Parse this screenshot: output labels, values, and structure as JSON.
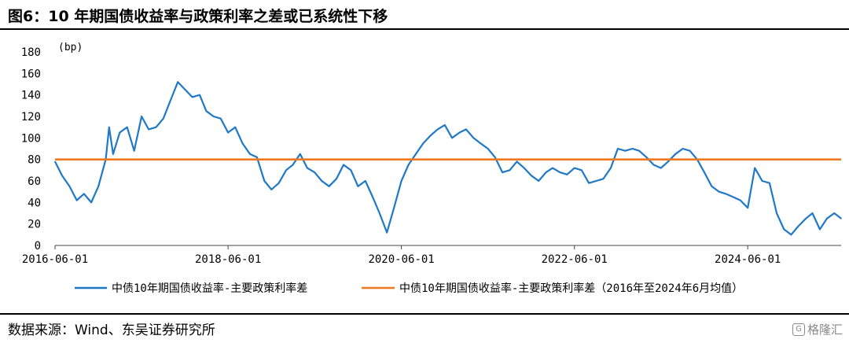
{
  "title": "图6：10 年期国债收益率与政策利率之差或已系统性下移",
  "source": "数据来源：Wind、东吴证券研究所",
  "watermark": "格隆汇",
  "chart_data": {
    "type": "line",
    "unit_label": "(bp)",
    "ylim": [
      0,
      180
    ],
    "yticks": [
      0,
      20,
      40,
      60,
      80,
      100,
      120,
      140,
      160,
      180
    ],
    "xlim": [
      "2016-06-01",
      "2025-06-30"
    ],
    "xticks": [
      "2016-06-01",
      "2018-06-01",
      "2020-06-01",
      "2022-06-01",
      "2024-06-01"
    ],
    "grid": false,
    "legend_position": "bottom",
    "colors": {
      "spread": "#1f78c8",
      "mean": "#f07820"
    },
    "series": [
      {
        "name": "中债10年期国债收益率-主要政策利率差",
        "color": "#1f78c8",
        "points": [
          [
            "2016-06-01",
            78
          ],
          [
            "2016-07-01",
            65
          ],
          [
            "2016-08-01",
            55
          ],
          [
            "2016-09-01",
            42
          ],
          [
            "2016-10-01",
            48
          ],
          [
            "2016-11-01",
            40
          ],
          [
            "2016-12-01",
            55
          ],
          [
            "2017-01-01",
            80
          ],
          [
            "2017-01-15",
            110
          ],
          [
            "2017-02-01",
            85
          ],
          [
            "2017-03-01",
            105
          ],
          [
            "2017-04-01",
            110
          ],
          [
            "2017-05-01",
            88
          ],
          [
            "2017-06-01",
            120
          ],
          [
            "2017-07-01",
            108
          ],
          [
            "2017-08-01",
            110
          ],
          [
            "2017-09-01",
            118
          ],
          [
            "2017-10-01",
            135
          ],
          [
            "2017-11-01",
            152
          ],
          [
            "2017-12-01",
            145
          ],
          [
            "2018-01-01",
            138
          ],
          [
            "2018-02-01",
            140
          ],
          [
            "2018-03-01",
            125
          ],
          [
            "2018-04-01",
            120
          ],
          [
            "2018-05-01",
            118
          ],
          [
            "2018-06-01",
            105
          ],
          [
            "2018-07-01",
            110
          ],
          [
            "2018-08-01",
            95
          ],
          [
            "2018-09-01",
            85
          ],
          [
            "2018-10-01",
            82
          ],
          [
            "2018-11-01",
            60
          ],
          [
            "2018-12-01",
            52
          ],
          [
            "2019-01-01",
            58
          ],
          [
            "2019-02-01",
            70
          ],
          [
            "2019-03-01",
            75
          ],
          [
            "2019-04-01",
            85
          ],
          [
            "2019-05-01",
            72
          ],
          [
            "2019-06-01",
            68
          ],
          [
            "2019-07-01",
            60
          ],
          [
            "2019-08-01",
            55
          ],
          [
            "2019-09-01",
            62
          ],
          [
            "2019-10-01",
            75
          ],
          [
            "2019-11-01",
            70
          ],
          [
            "2019-12-01",
            55
          ],
          [
            "2020-01-01",
            60
          ],
          [
            "2020-02-01",
            45
          ],
          [
            "2020-03-01",
            30
          ],
          [
            "2020-04-01",
            12
          ],
          [
            "2020-05-01",
            35
          ],
          [
            "2020-06-01",
            60
          ],
          [
            "2020-07-01",
            75
          ],
          [
            "2020-08-01",
            85
          ],
          [
            "2020-09-01",
            95
          ],
          [
            "2020-10-01",
            102
          ],
          [
            "2020-11-01",
            108
          ],
          [
            "2020-12-01",
            112
          ],
          [
            "2021-01-01",
            100
          ],
          [
            "2021-02-01",
            105
          ],
          [
            "2021-03-01",
            108
          ],
          [
            "2021-04-01",
            100
          ],
          [
            "2021-05-01",
            95
          ],
          [
            "2021-06-01",
            90
          ],
          [
            "2021-07-01",
            82
          ],
          [
            "2021-08-01",
            68
          ],
          [
            "2021-09-01",
            70
          ],
          [
            "2021-10-01",
            78
          ],
          [
            "2021-11-01",
            72
          ],
          [
            "2021-12-01",
            65
          ],
          [
            "2022-01-01",
            60
          ],
          [
            "2022-02-01",
            68
          ],
          [
            "2022-03-01",
            72
          ],
          [
            "2022-04-01",
            68
          ],
          [
            "2022-05-01",
            66
          ],
          [
            "2022-06-01",
            72
          ],
          [
            "2022-07-01",
            70
          ],
          [
            "2022-08-01",
            58
          ],
          [
            "2022-09-01",
            60
          ],
          [
            "2022-10-01",
            62
          ],
          [
            "2022-11-01",
            72
          ],
          [
            "2022-12-01",
            90
          ],
          [
            "2023-01-01",
            88
          ],
          [
            "2023-02-01",
            90
          ],
          [
            "2023-03-01",
            88
          ],
          [
            "2023-04-01",
            82
          ],
          [
            "2023-05-01",
            75
          ],
          [
            "2023-06-01",
            72
          ],
          [
            "2023-07-01",
            78
          ],
          [
            "2023-08-01",
            85
          ],
          [
            "2023-09-01",
            90
          ],
          [
            "2023-10-01",
            88
          ],
          [
            "2023-11-01",
            80
          ],
          [
            "2023-12-01",
            68
          ],
          [
            "2024-01-01",
            55
          ],
          [
            "2024-02-01",
            50
          ],
          [
            "2024-03-01",
            48
          ],
          [
            "2024-04-01",
            45
          ],
          [
            "2024-05-01",
            42
          ],
          [
            "2024-06-01",
            35
          ],
          [
            "2024-07-01",
            72
          ],
          [
            "2024-08-01",
            60
          ],
          [
            "2024-09-01",
            58
          ],
          [
            "2024-10-01",
            30
          ],
          [
            "2024-11-01",
            15
          ],
          [
            "2024-12-01",
            10
          ],
          [
            "2025-01-01",
            18
          ],
          [
            "2025-02-01",
            25
          ],
          [
            "2025-03-01",
            30
          ],
          [
            "2025-04-01",
            15
          ],
          [
            "2025-05-01",
            25
          ],
          [
            "2025-06-01",
            30
          ],
          [
            "2025-06-30",
            25
          ]
        ]
      },
      {
        "name": "中债10年期国债收益率-主要政策利率差（2016年至2024年6月均值）",
        "color": "#f07820",
        "value": 80
      }
    ]
  }
}
